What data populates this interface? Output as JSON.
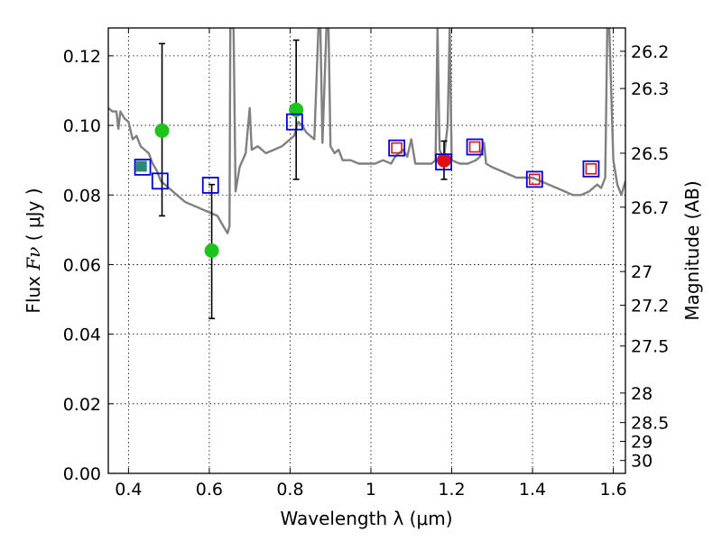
{
  "chart_data": {
    "type": "scatter",
    "title": "",
    "xlabel": "Wavelength  λ (μm)",
    "ylabel_left": {
      "prefix": "Flux  ",
      "math": "Fν",
      "suffix": "  ( μJy )"
    },
    "ylabel_right": "Magnitude (AB)",
    "xlim": [
      0.35,
      1.63
    ],
    "ylim": [
      0.0,
      0.128
    ],
    "grid": true,
    "x_ticks": [
      0.4,
      0.6,
      0.8,
      1.0,
      1.2,
      1.4,
      1.6
    ],
    "x_tick_labels": [
      "0.4",
      "0.6",
      "0.8",
      "1",
      "1.2",
      "1.4",
      "1.6"
    ],
    "y_ticks": [
      0.0,
      0.02,
      0.04,
      0.06,
      0.08,
      0.1,
      0.12
    ],
    "y_tick_labels": [
      "0.00",
      "0.02",
      "0.04",
      "0.06",
      "0.08",
      "0.10",
      "0.12"
    ],
    "right_axis_ticks": [
      {
        "label": "26.2",
        "flux": 0.1213
      },
      {
        "label": "26.3",
        "flux": 0.1106
      },
      {
        "label": "26.5",
        "flux": 0.092
      },
      {
        "label": "26.7",
        "flux": 0.0765
      },
      {
        "label": "27",
        "flux": 0.058
      },
      {
        "label": "27.2",
        "flux": 0.0483
      },
      {
        "label": "27.5",
        "flux": 0.0366
      },
      {
        "label": "28",
        "flux": 0.0231
      },
      {
        "label": "28.5",
        "flux": 0.0146
      },
      {
        "label": "29",
        "flux": 0.0092
      },
      {
        "label": "30",
        "flux": 0.0037
      }
    ],
    "series": [
      {
        "name": "model SED",
        "kind": "line",
        "color": "#808080",
        "points": [
          [
            0.35,
            0.105
          ],
          [
            0.36,
            0.104
          ],
          [
            0.37,
            0.104
          ],
          [
            0.375,
            0.099
          ],
          [
            0.38,
            0.104
          ],
          [
            0.39,
            0.102
          ],
          [
            0.4,
            0.101
          ],
          [
            0.41,
            0.096
          ],
          [
            0.42,
            0.097
          ],
          [
            0.43,
            0.094
          ],
          [
            0.44,
            0.093
          ],
          [
            0.45,
            0.092
          ],
          [
            0.46,
            0.089
          ],
          [
            0.47,
            0.087
          ],
          [
            0.48,
            0.084
          ],
          [
            0.5,
            0.082
          ],
          [
            0.52,
            0.08
          ],
          [
            0.54,
            0.078
          ],
          [
            0.56,
            0.077
          ],
          [
            0.58,
            0.076
          ],
          [
            0.6,
            0.075
          ],
          [
            0.62,
            0.074
          ],
          [
            0.63,
            0.072
          ],
          [
            0.64,
            0.07
          ],
          [
            0.645,
            0.069
          ],
          [
            0.65,
            0.071
          ],
          [
            0.652,
            0.128
          ],
          [
            0.66,
            0.128
          ],
          [
            0.665,
            0.081
          ],
          [
            0.675,
            0.088
          ],
          [
            0.69,
            0.092
          ],
          [
            0.7,
            0.105
          ],
          [
            0.705,
            0.093
          ],
          [
            0.72,
            0.094
          ],
          [
            0.74,
            0.092
          ],
          [
            0.76,
            0.093
          ],
          [
            0.78,
            0.094
          ],
          [
            0.8,
            0.096
          ],
          [
            0.81,
            0.097
          ],
          [
            0.815,
            0.099
          ],
          [
            0.82,
            0.101
          ],
          [
            0.83,
            0.1
          ],
          [
            0.84,
            0.098
          ],
          [
            0.85,
            0.097
          ],
          [
            0.86,
            0.096
          ],
          [
            0.87,
            0.128
          ],
          [
            0.875,
            0.128
          ],
          [
            0.88,
            0.095
          ],
          [
            0.89,
            0.128
          ],
          [
            0.895,
            0.128
          ],
          [
            0.9,
            0.094
          ],
          [
            0.91,
            0.092
          ],
          [
            0.92,
            0.093
          ],
          [
            0.93,
            0.09
          ],
          [
            0.95,
            0.09
          ],
          [
            0.97,
            0.089
          ],
          [
            0.99,
            0.089
          ],
          [
            1.01,
            0.089
          ],
          [
            1.03,
            0.09
          ],
          [
            1.05,
            0.089
          ],
          [
            1.06,
            0.091
          ],
          [
            1.07,
            0.092
          ],
          [
            1.08,
            0.093
          ],
          [
            1.09,
            0.091
          ],
          [
            1.1,
            0.096
          ],
          [
            1.11,
            0.089
          ],
          [
            1.13,
            0.089
          ],
          [
            1.15,
            0.089
          ],
          [
            1.16,
            0.09
          ],
          [
            1.165,
            0.128
          ],
          [
            1.17,
            0.093
          ],
          [
            1.18,
            0.09
          ],
          [
            1.19,
            0.1
          ],
          [
            1.195,
            0.128
          ],
          [
            1.2,
            0.09
          ],
          [
            1.22,
            0.089
          ],
          [
            1.24,
            0.089
          ],
          [
            1.26,
            0.09
          ],
          [
            1.27,
            0.091
          ],
          [
            1.28,
            0.095
          ],
          [
            1.285,
            0.089
          ],
          [
            1.3,
            0.088
          ],
          [
            1.32,
            0.087
          ],
          [
            1.34,
            0.086
          ],
          [
            1.36,
            0.085
          ],
          [
            1.38,
            0.085
          ],
          [
            1.4,
            0.085
          ],
          [
            1.42,
            0.084
          ],
          [
            1.44,
            0.083
          ],
          [
            1.46,
            0.082
          ],
          [
            1.48,
            0.081
          ],
          [
            1.5,
            0.08
          ],
          [
            1.52,
            0.08
          ],
          [
            1.54,
            0.081
          ],
          [
            1.56,
            0.083
          ],
          [
            1.57,
            0.082
          ],
          [
            1.58,
            0.085
          ],
          [
            1.585,
            0.128
          ],
          [
            1.59,
            0.128
          ],
          [
            1.6,
            0.09
          ],
          [
            1.61,
            0.083
          ],
          [
            1.62,
            0.08
          ],
          [
            1.63,
            0.084
          ]
        ]
      },
      {
        "name": "green points",
        "kind": "points",
        "color": "#1ec41e",
        "points": [
          {
            "x": 0.483,
            "y": 0.0985,
            "yerr_low": 0.0245,
            "yerr_high": 0.025
          },
          {
            "x": 0.606,
            "y": 0.064,
            "yerr_low": 0.0195,
            "yerr_high": 0.019
          },
          {
            "x": 0.815,
            "y": 0.1045,
            "yerr_low": 0.02,
            "yerr_high": 0.02
          }
        ]
      },
      {
        "name": "red point",
        "kind": "points",
        "color": "#e01010",
        "points": [
          {
            "x": 1.181,
            "y": 0.09,
            "yerr_low": 0.0055,
            "yerr_high": 0.0055
          }
        ]
      },
      {
        "name": "blue squares",
        "kind": "open-squares",
        "color": "#0000dd",
        "points": [
          {
            "x": 0.435,
            "y": 0.088
          },
          {
            "x": 0.478,
            "y": 0.084
          },
          {
            "x": 0.603,
            "y": 0.0828
          },
          {
            "x": 0.811,
            "y": 0.101
          },
          {
            "x": 1.064,
            "y": 0.0935
          },
          {
            "x": 1.18,
            "y": 0.0895
          },
          {
            "x": 1.257,
            "y": 0.0938
          },
          {
            "x": 1.405,
            "y": 0.0845
          },
          {
            "x": 1.545,
            "y": 0.0875
          }
        ]
      },
      {
        "name": "red squares",
        "kind": "open-squares-small",
        "color": "#dd1111",
        "points": [
          {
            "x": 1.064,
            "y": 0.0935
          },
          {
            "x": 1.257,
            "y": 0.0938
          },
          {
            "x": 1.405,
            "y": 0.0845
          },
          {
            "x": 1.545,
            "y": 0.0875
          }
        ]
      },
      {
        "name": "teal marker",
        "kind": "filled-square",
        "color": "#2a8a7a",
        "points": [
          {
            "x": 0.432,
            "y": 0.088
          }
        ]
      }
    ]
  }
}
